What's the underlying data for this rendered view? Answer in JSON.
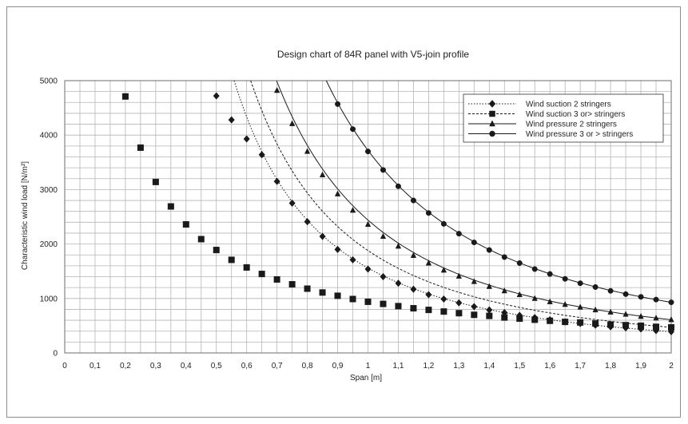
{
  "chart_data": {
    "type": "line",
    "title": "Design chart of 84R panel with V5-join profile",
    "xlabel": "Span [m]",
    "ylabel": "Characteristic wind load  [N/m²]",
    "xlim": [
      0,
      2
    ],
    "ylim": [
      0,
      5000
    ],
    "x_ticks": [
      "0",
      "0,1",
      "0,2",
      "0,3",
      "0,4",
      "0,5",
      "0,6",
      "0,7",
      "0,8",
      "0,9",
      "1",
      "1,1",
      "1,2",
      "1,3",
      "1,4",
      "1,5",
      "1,6",
      "1,7",
      "1,8",
      "1,9",
      "2"
    ],
    "y_ticks": [
      "0",
      "1000",
      "2000",
      "3000",
      "4000",
      "5000"
    ],
    "grid": true,
    "legend_position": "top-right",
    "series": [
      {
        "name": "Wind suction 2 stringers",
        "marker": "diamond",
        "line_style": "dotted",
        "x": [
          0.5,
          0.55,
          0.6,
          0.65,
          0.7,
          0.75,
          0.8,
          0.85,
          0.9,
          0.95,
          1.0,
          1.05,
          1.1,
          1.15,
          1.2,
          1.25,
          1.3,
          1.35,
          1.4,
          1.45,
          1.5,
          1.55,
          1.6,
          1.65,
          1.7,
          1.75,
          1.8,
          1.85,
          1.9,
          1.95,
          2.0
        ],
        "y": [
          4720,
          4280,
          3930,
          3640,
          3150,
          2750,
          2410,
          2140,
          1900,
          1710,
          1540,
          1400,
          1280,
          1170,
          1070,
          990,
          920,
          850,
          790,
          740,
          690,
          650,
          610,
          570,
          540,
          510,
          480,
          460,
          440,
          410,
          390
        ]
      },
      {
        "name": "Wind suction 3 or> stringers",
        "marker": "square",
        "line_style": "dashed",
        "x": [
          0.2,
          0.25,
          0.3,
          0.35,
          0.4,
          0.45,
          0.5,
          0.55,
          0.6,
          0.65,
          0.7,
          0.75,
          0.8,
          0.85,
          0.9,
          0.95,
          1.0,
          1.05,
          1.1,
          1.15,
          1.2,
          1.25,
          1.3,
          1.35,
          1.4,
          1.45,
          1.5,
          1.55,
          1.6,
          1.65,
          1.7,
          1.75,
          1.8,
          1.85,
          1.9,
          1.95,
          2.0
        ],
        "y": [
          4710,
          3770,
          3140,
          2690,
          2360,
          2090,
          1890,
          1710,
          1570,
          1450,
          1350,
          1260,
          1180,
          1110,
          1050,
          990,
          940,
          900,
          860,
          820,
          790,
          760,
          730,
          700,
          680,
          650,
          630,
          610,
          590,
          570,
          560,
          540,
          520,
          510,
          500,
          480,
          470
        ]
      },
      {
        "name": "Wind pressure 2 stringers",
        "marker": "triangle",
        "line_style": "solid",
        "x": [
          0.7,
          0.75,
          0.8,
          0.85,
          0.9,
          0.95,
          1.0,
          1.05,
          1.1,
          1.15,
          1.2,
          1.25,
          1.3,
          1.35,
          1.4,
          1.45,
          1.5,
          1.55,
          1.6,
          1.65,
          1.7,
          1.75,
          1.8,
          1.85,
          1.9,
          1.95,
          2.0
        ],
        "y": [
          4820,
          4210,
          3700,
          3270,
          2920,
          2620,
          2360,
          2140,
          1960,
          1790,
          1650,
          1520,
          1410,
          1310,
          1220,
          1140,
          1070,
          1000,
          940,
          890,
          840,
          790,
          750,
          710,
          670,
          640,
          610
        ]
      },
      {
        "name": "Wind pressure 3 or > stringers",
        "marker": "circle",
        "line_style": "solid",
        "x": [
          0.9,
          0.95,
          1.0,
          1.05,
          1.1,
          1.15,
          1.2,
          1.25,
          1.3,
          1.35,
          1.4,
          1.45,
          1.5,
          1.55,
          1.6,
          1.65,
          1.7,
          1.75,
          1.8,
          1.85,
          1.9,
          1.95,
          2.0
        ],
        "y": [
          4570,
          4110,
          3700,
          3360,
          3060,
          2800,
          2570,
          2370,
          2190,
          2030,
          1890,
          1760,
          1650,
          1540,
          1450,
          1360,
          1280,
          1210,
          1140,
          1080,
          1030,
          980,
          930
        ]
      }
    ]
  }
}
